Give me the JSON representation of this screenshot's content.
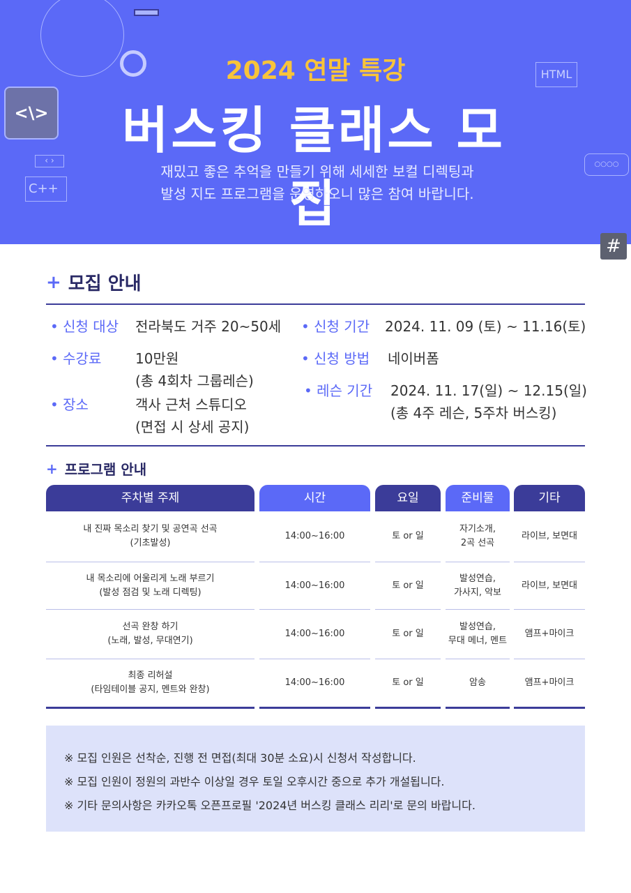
{
  "hero": {
    "subtitle": "2024 연말 특강",
    "title": "버스킹 클래스 모집",
    "desc_line1": "재밌고 좋은 추억을 만들기 위해 세세한 보컬 디렉팅과",
    "desc_line2": "발성 지도 프로그램을 운영하오니 많은 참여 바랍니다.",
    "deco_html": "HTML",
    "deco_cpp": "C++",
    "deco_code": "<\\>",
    "deco_dots": "○○○○",
    "hash": "#"
  },
  "info": {
    "heading": "모집 안내",
    "plus": "+",
    "target_label": "• 신청 대상",
    "target": "전라북도 거주 20~50세",
    "period_label": "• 신청 기간",
    "period": "2024. 11. 09 (토) ~ 11.16(토)",
    "fee_label": "• 수강료",
    "fee": "10만원",
    "fee_note": "(총 4회차 그룹레슨)",
    "method_label": "• 신청 방법",
    "method": "네이버폼",
    "place_label": "• 장소",
    "place": "객사 근처 스튜디오",
    "place_note": "(면접 시 상세 공지)",
    "lesson_label": "• 레슨 기간",
    "lesson": "2024. 11. 17(일) ~ 12.15(일)",
    "lesson_note": "(총 4주 레슨, 5주차 버스킹)"
  },
  "program": {
    "heading": "프로그램 안내",
    "plus": "+",
    "headers": [
      "주차별 주제",
      "시간",
      "요일",
      "준비물",
      "기타"
    ],
    "rows": [
      {
        "topic": "내 진짜 목소리 찾기 및 공연곡 선곡",
        "topic2": "(기초발성)",
        "time": "14:00~16:00",
        "day": "토 or 일",
        "prep": "자기소개,",
        "prep2": "2곡 선곡",
        "etc": "라이브, 보면대"
      },
      {
        "topic": "내 목소리에 어울리게 노래 부르기",
        "topic2": "(발성 점검 및 노래 디렉팅)",
        "time": "14:00~16:00",
        "day": "토 or 일",
        "prep": "발성연습,",
        "prep2": "가사지, 악보",
        "etc": "라이브, 보면대"
      },
      {
        "topic": "선곡 완창 하기",
        "topic2": "(노래, 발성, 무대연기)",
        "time": "14:00~16:00",
        "day": "토 or 일",
        "prep": "발성연습,",
        "prep2": "무대 메너, 멘트",
        "etc": "앰프+마이크"
      },
      {
        "topic": "최종 리허설",
        "topic2": "(타임테이블 공지, 멘트와 완창)",
        "time": "14:00~16:00",
        "day": "토 or 일",
        "prep": "암송",
        "prep2": "",
        "etc": "앰프+마이크"
      }
    ]
  },
  "notes": [
    "※ 모집 인원은 선착순, 진행 전 면접(최대 30분 소요)시 신청서 작성합니다.",
    "※ 모집 인원이 정원의 과반수 이상일 경우 토일 오후시간 중으로 추가 개설됩니다.",
    "※ 기타 문의사항은 카카오톡 오픈프로필 '2024년 버스킹 클래스 리리'로 문의 바랍니다."
  ],
  "colors": {
    "hero": "#5b69f7",
    "navy": "#3b3c99",
    "accent_yellow": "#f8c43a",
    "note_bg": "#dde2fa"
  }
}
